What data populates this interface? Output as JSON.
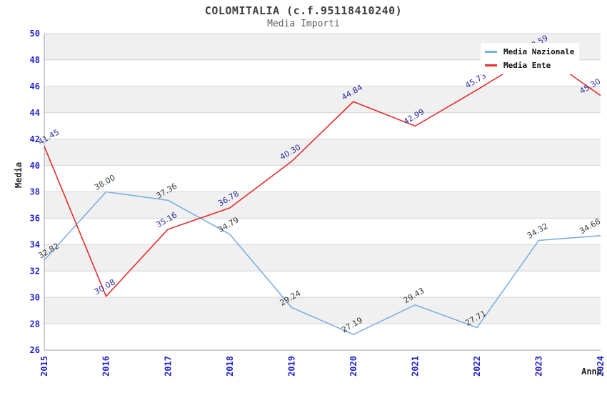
{
  "chart_data": {
    "type": "line",
    "title": "COLOMITALIA (c.f.95118410240)",
    "subtitle": "Media Importi",
    "xlabel": "Anno",
    "ylabel": "Media",
    "categories": [
      "2015",
      "2016",
      "2017",
      "2018",
      "2019",
      "2020",
      "2021",
      "2022",
      "2023",
      "2024"
    ],
    "series": [
      {
        "name": "Media Nazionale",
        "color": "#7cb0e2",
        "label_color": "#3a3a3a",
        "values": [
          32.82,
          38.0,
          37.36,
          34.79,
          29.24,
          27.19,
          29.43,
          27.71,
          34.32,
          34.68
        ]
      },
      {
        "name": "Media Ente",
        "color": "#e62e2e",
        "label_color": "#2d2d9e",
        "values": [
          41.45,
          30.08,
          35.16,
          36.78,
          40.3,
          44.84,
          42.99,
          45.73,
          48.59,
          45.3
        ]
      }
    ],
    "ylim": [
      26,
      50
    ],
    "ytick_step": 2,
    "grid": true,
    "legend_position": "top-right",
    "tick_label_color": "#2222cc",
    "gridline_color": "#d4d4d4",
    "axis_color": "#a0a0a0",
    "band_gray": "#f0f0f0"
  }
}
